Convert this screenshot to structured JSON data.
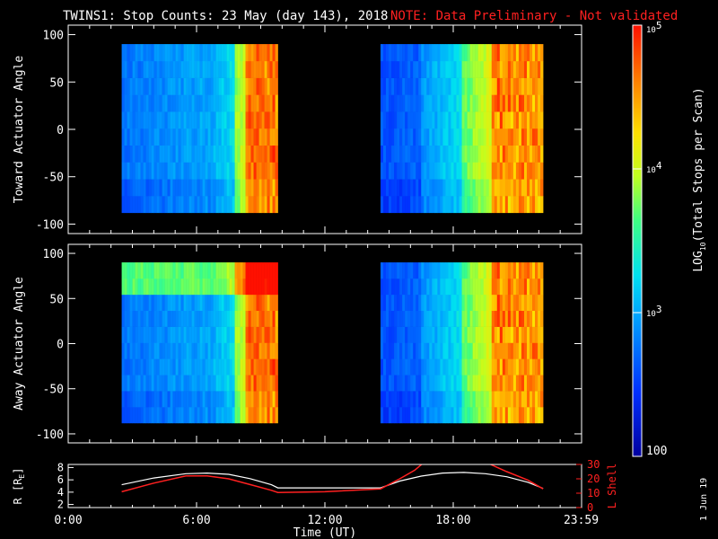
{
  "title": "TWINS1: Stop Counts: 23 May (day 143), 2018",
  "note": "NOTE: Data Preliminary - Not validated",
  "footer_date": "1 Jun 19",
  "colors": {
    "note": "#ff2020",
    "axis": "#ffffff",
    "lshell": "#ff2020"
  },
  "chart_data": [
    {
      "type": "heatmap",
      "name": "toward",
      "ylabel": "Toward Actuator Angle",
      "ylim": [
        -110,
        110
      ],
      "yticks": [
        -100,
        -50,
        0,
        50,
        100
      ],
      "xlim": [
        0,
        24
      ],
      "data_blocks": [
        [
          2.5,
          9.8
        ],
        [
          14.6,
          22.2
        ]
      ],
      "angle_range": [
        -88,
        90
      ]
    },
    {
      "type": "heatmap",
      "name": "away",
      "ylabel": "Away Actuator Angle",
      "ylim": [
        -110,
        110
      ],
      "yticks": [
        -100,
        -50,
        0,
        50,
        100
      ],
      "xlim": [
        0,
        24
      ],
      "data_blocks": [
        [
          2.5,
          9.8
        ],
        [
          14.6,
          22.2
        ]
      ],
      "angle_range": [
        -88,
        90
      ]
    },
    {
      "type": "line",
      "name": "orbit",
      "ylabel": "R [R",
      "ylabel_sub": "E",
      "ylabel_end": "]",
      "ylim": [
        1.5,
        8.5
      ],
      "yticks": [
        2,
        4,
        6,
        8
      ],
      "y2label": "L Shell",
      "y2lim": [
        0,
        30
      ],
      "y2ticks": [
        0,
        10,
        20,
        30
      ],
      "xlabel": "Time (UT)",
      "xticks": [
        {
          "value": 0,
          "label": "0:00"
        },
        {
          "value": 6,
          "label": "6:00"
        },
        {
          "value": 12,
          "label": "12:00"
        },
        {
          "value": 18,
          "label": "18:00"
        },
        {
          "value": 23.98,
          "label": "23:59"
        }
      ],
      "series": [
        {
          "name": "R",
          "color": "#ffffff",
          "x": [
            2.5,
            4,
            5.5,
            6.5,
            7.5,
            8.5,
            9.5,
            9.8,
            12,
            14.6,
            15.5,
            16.5,
            17.5,
            18.5,
            19.5,
            20.5,
            21.5,
            22.2
          ],
          "y": [
            5.2,
            6.3,
            7.0,
            7.1,
            6.9,
            6.2,
            5.2,
            4.7,
            4.7,
            4.7,
            5.8,
            6.6,
            7.1,
            7.2,
            7.0,
            6.5,
            5.6,
            4.6
          ]
        },
        {
          "name": "L Shell",
          "color": "#ff2020",
          "x": [
            2.5,
            4,
            5.5,
            6.5,
            7.5,
            8.5,
            9.5,
            9.8,
            12,
            14.6,
            15.5,
            16.2,
            16.6,
            19.6,
            20.5,
            21.5,
            22.2
          ],
          "y": [
            11,
            17,
            22,
            22,
            20,
            16,
            12,
            10.5,
            11,
            13,
            20,
            26,
            31,
            31,
            25,
            19,
            13
          ]
        }
      ]
    }
  ],
  "colorbar": {
    "label": "LOG10(Total Stops per Scan)",
    "label_main": "LOG",
    "label_sub": "10",
    "label_rest": "(Total Stops per Scan)",
    "ticks": [
      {
        "label": "100",
        "sup": ""
      },
      {
        "label": "10",
        "sup": "3"
      },
      {
        "label": "10",
        "sup": "4"
      },
      {
        "label": "10",
        "sup": "5"
      }
    ],
    "range_log": [
      2,
      5
    ]
  }
}
